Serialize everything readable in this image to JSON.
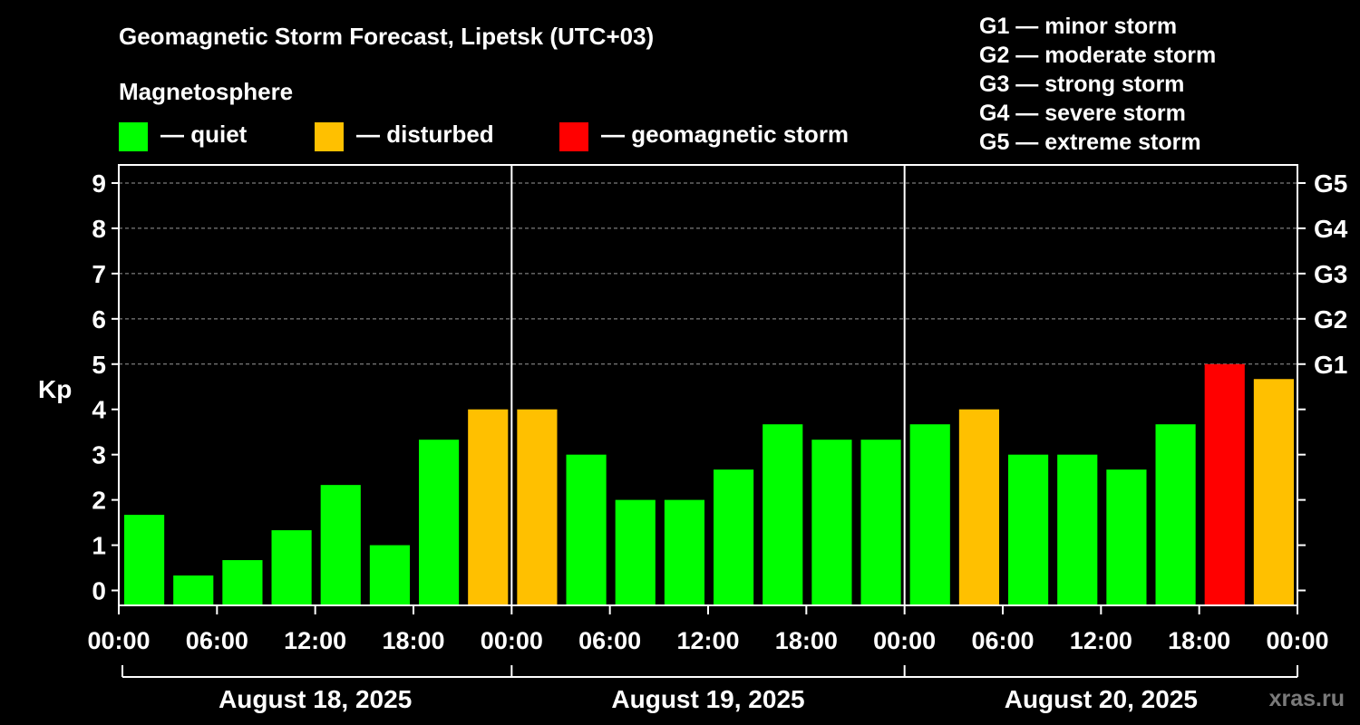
{
  "title": "Geomagnetic Storm Forecast, Lipetsk (UTC+03)",
  "legend": {
    "heading": "Magnetosphere",
    "items": [
      {
        "label": "— quiet",
        "color": "#00ff00"
      },
      {
        "label": "— disturbed",
        "color": "#ffc000"
      },
      {
        "label": "— geomagnetic storm",
        "color": "#ff0000"
      }
    ]
  },
  "storm_scale": [
    "G1 — minor storm",
    "G2 — moderate storm",
    "G3 — strong storm",
    "G4 — severe storm",
    "G5 — extreme storm"
  ],
  "watermark": "xras.ru",
  "chart_data": {
    "type": "bar",
    "ylabel": "Kp",
    "ylim": [
      -0.33,
      9.4
    ],
    "yticks": [
      "0",
      "1",
      "2",
      "3",
      "4",
      "5",
      "6",
      "7",
      "8",
      "9"
    ],
    "right_ticks": [
      {
        "value": 5,
        "label": "G1"
      },
      {
        "value": 6,
        "label": "G2"
      },
      {
        "value": 7,
        "label": "G3"
      },
      {
        "value": 8,
        "label": "G4"
      },
      {
        "value": 9,
        "label": "G5"
      }
    ],
    "grid": true,
    "x_ticks": [
      "00:00",
      "06:00",
      "12:00",
      "18:00",
      "00:00",
      "06:00",
      "12:00",
      "18:00",
      "00:00",
      "06:00",
      "12:00",
      "18:00",
      "00:00"
    ],
    "days": [
      "August 18, 2025",
      "August 19, 2025",
      "August 20, 2025"
    ],
    "interval_hours": 3,
    "values": [
      1.67,
      0.33,
      0.67,
      1.33,
      2.33,
      1.0,
      3.33,
      4.0,
      4.0,
      3.0,
      2.0,
      2.0,
      2.67,
      3.67,
      3.33,
      3.33,
      3.67,
      4.0,
      3.0,
      3.0,
      2.67,
      3.67,
      5.0,
      4.67
    ],
    "colors": {
      "quiet": "#00ff00",
      "disturbed": "#ffc000",
      "storm": "#ff0000"
    }
  }
}
